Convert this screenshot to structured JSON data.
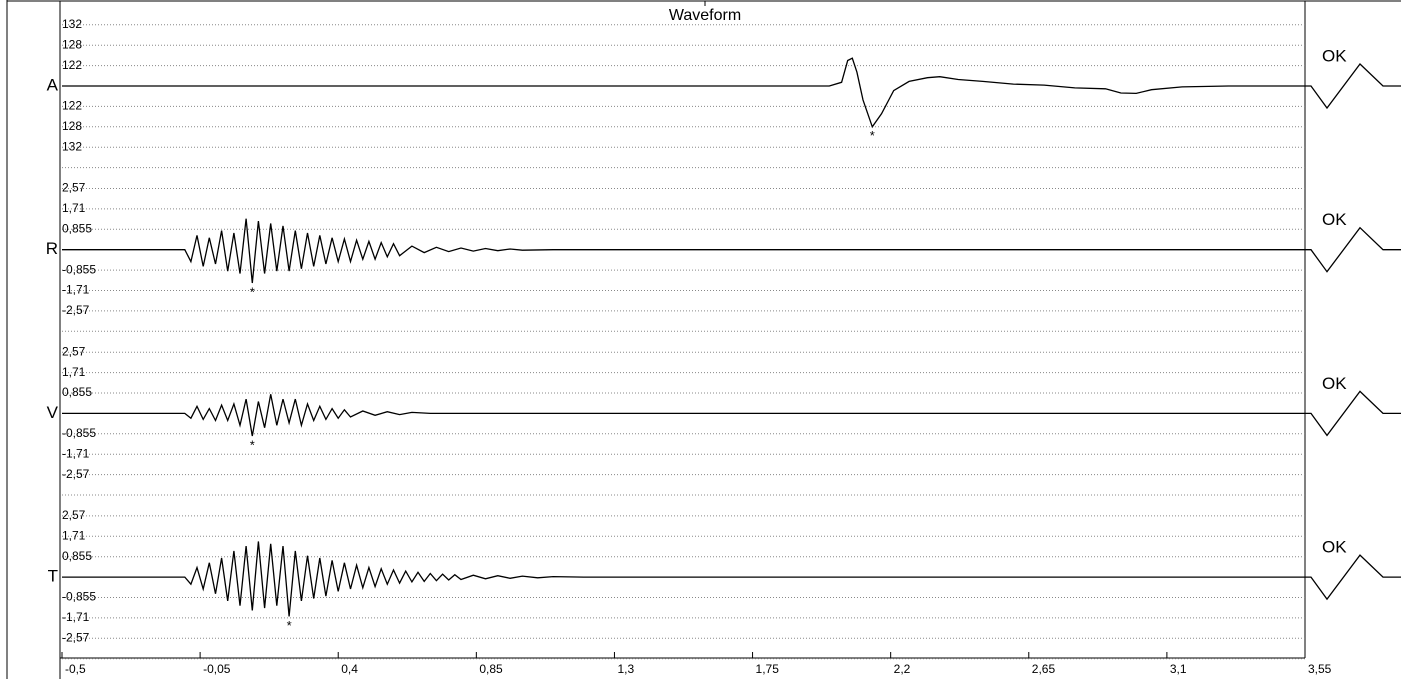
{
  "window": {
    "title": "Waveform"
  },
  "x_axis": {
    "xlim": [
      -0.5,
      3.55
    ],
    "ticks": [
      {
        "value": -0.5,
        "label": "-0,5"
      },
      {
        "value": -0.05,
        "label": "-0,05"
      },
      {
        "value": 0.4,
        "label": "0,4"
      },
      {
        "value": 0.85,
        "label": "0,85"
      },
      {
        "value": 1.3,
        "label": "1,3"
      },
      {
        "value": 1.75,
        "label": "1,75"
      },
      {
        "value": 2.2,
        "label": "2,2"
      },
      {
        "value": 2.65,
        "label": "2,65"
      },
      {
        "value": 3.1,
        "label": "3,1"
      },
      {
        "value": 3.55,
        "label": "3,55"
      }
    ]
  },
  "channels": [
    {
      "name": "A",
      "status": "OK",
      "marker": "*",
      "marker_t": 2.14,
      "ylim": [
        -132,
        132
      ],
      "tick_labels": [
        "132",
        "128",
        "122",
        "122",
        "128",
        "132"
      ],
      "t": [
        -0.5,
        2.0,
        2.04,
        2.06,
        2.075,
        2.09,
        2.11,
        2.14,
        2.17,
        2.21,
        2.26,
        2.32,
        2.36,
        2.42,
        2.5,
        2.6,
        2.7,
        2.8,
        2.9,
        2.95,
        3.0,
        3.05,
        3.15,
        3.3,
        3.55
      ],
      "v": [
        0,
        0,
        8,
        55,
        60,
        30,
        -30,
        -88,
        -60,
        -10,
        10,
        18,
        20,
        14,
        10,
        4,
        2,
        -4,
        -6,
        -15,
        -16,
        -8,
        -2,
        0,
        0
      ]
    },
    {
      "name": "R",
      "status": "OK",
      "marker": "*",
      "marker_t": 0.12,
      "ylim": [
        -2.57,
        2.57
      ],
      "tick_labels": [
        "2,57",
        "1,71",
        "0,855",
        "-0,855",
        "-1,71",
        "-2,57"
      ],
      "t": [
        -0.5,
        -0.1,
        -0.08,
        -0.06,
        -0.04,
        -0.02,
        0,
        0.02,
        0.04,
        0.06,
        0.08,
        0.1,
        0.12,
        0.14,
        0.16,
        0.18,
        0.2,
        0.22,
        0.24,
        0.26,
        0.28,
        0.3,
        0.32,
        0.34,
        0.36,
        0.38,
        0.4,
        0.42,
        0.44,
        0.46,
        0.48,
        0.5,
        0.52,
        0.54,
        0.56,
        0.58,
        0.6,
        0.64,
        0.68,
        0.72,
        0.76,
        0.8,
        0.84,
        0.88,
        0.92,
        0.96,
        1.0,
        1.1,
        3.55
      ],
      "v": [
        0,
        0,
        -0.5,
        0.6,
        -0.7,
        0.5,
        -0.6,
        0.8,
        -0.9,
        0.7,
        -1.0,
        1.3,
        -1.4,
        1.2,
        -1.0,
        1.1,
        -0.9,
        1.0,
        -0.9,
        0.8,
        -0.8,
        0.7,
        -0.7,
        0.6,
        -0.6,
        0.5,
        -0.5,
        0.45,
        -0.5,
        0.4,
        -0.4,
        0.35,
        -0.4,
        0.3,
        -0.3,
        0.25,
        -0.25,
        0.15,
        -0.12,
        0.1,
        -0.08,
        0.07,
        -0.06,
        0.05,
        -0.04,
        0.03,
        -0.02,
        0,
        0
      ]
    },
    {
      "name": "V",
      "status": "OK",
      "marker": "*",
      "marker_t": 0.12,
      "ylim": [
        -2.57,
        2.57
      ],
      "tick_labels": [
        "2,57",
        "1,71",
        "0,855",
        "-0,855",
        "-1,71",
        "-2,57"
      ],
      "t": [
        -0.5,
        -0.1,
        -0.08,
        -0.06,
        -0.04,
        -0.02,
        0,
        0.02,
        0.04,
        0.06,
        0.08,
        0.1,
        0.12,
        0.14,
        0.16,
        0.18,
        0.2,
        0.22,
        0.24,
        0.26,
        0.28,
        0.3,
        0.32,
        0.34,
        0.36,
        0.38,
        0.4,
        0.42,
        0.44,
        0.48,
        0.52,
        0.56,
        0.6,
        0.64,
        0.7,
        3.55
      ],
      "v": [
        0,
        0,
        -0.2,
        0.3,
        -0.25,
        0.2,
        -0.3,
        0.35,
        -0.3,
        0.4,
        -0.5,
        0.6,
        -0.95,
        0.5,
        -0.6,
        0.8,
        -0.5,
        0.6,
        -0.4,
        0.6,
        -0.5,
        0.4,
        -0.3,
        0.3,
        -0.25,
        0.2,
        -0.2,
        0.15,
        -0.15,
        0.1,
        -0.08,
        0.07,
        -0.05,
        0.04,
        0,
        0
      ]
    },
    {
      "name": "T",
      "status": "OK",
      "marker": "*",
      "marker_t": 0.24,
      "ylim": [
        -2.57,
        2.57
      ],
      "tick_labels": [
        "2,57",
        "1,71",
        "0,855",
        "-0,855",
        "-1,71",
        "-2,57"
      ],
      "t": [
        -0.5,
        -0.1,
        -0.08,
        -0.06,
        -0.04,
        -0.02,
        0,
        0.02,
        0.04,
        0.06,
        0.08,
        0.1,
        0.12,
        0.14,
        0.16,
        0.18,
        0.2,
        0.22,
        0.24,
        0.26,
        0.28,
        0.3,
        0.32,
        0.34,
        0.36,
        0.38,
        0.4,
        0.42,
        0.44,
        0.46,
        0.48,
        0.5,
        0.52,
        0.54,
        0.56,
        0.58,
        0.6,
        0.62,
        0.64,
        0.66,
        0.68,
        0.7,
        0.72,
        0.74,
        0.76,
        0.78,
        0.8,
        0.84,
        0.88,
        0.92,
        0.96,
        1.0,
        1.05,
        1.1,
        1.2,
        3.55
      ],
      "v": [
        0,
        0,
        -0.3,
        0.4,
        -0.5,
        0.6,
        -0.7,
        0.8,
        -1.0,
        1.1,
        -1.2,
        1.3,
        -1.4,
        1.5,
        -1.3,
        1.4,
        -1.2,
        1.3,
        -1.65,
        1.1,
        -1.0,
        0.9,
        -0.9,
        0.8,
        -0.8,
        0.7,
        -0.6,
        0.6,
        -0.5,
        0.5,
        -0.45,
        0.4,
        -0.4,
        0.35,
        -0.3,
        0.3,
        -0.25,
        0.25,
        -0.2,
        0.2,
        -0.18,
        0.15,
        -0.15,
        0.12,
        -0.12,
        0.1,
        -0.1,
        0.08,
        -0.07,
        0.06,
        -0.05,
        0.04,
        -0.03,
        0.02,
        0,
        0
      ]
    }
  ]
}
